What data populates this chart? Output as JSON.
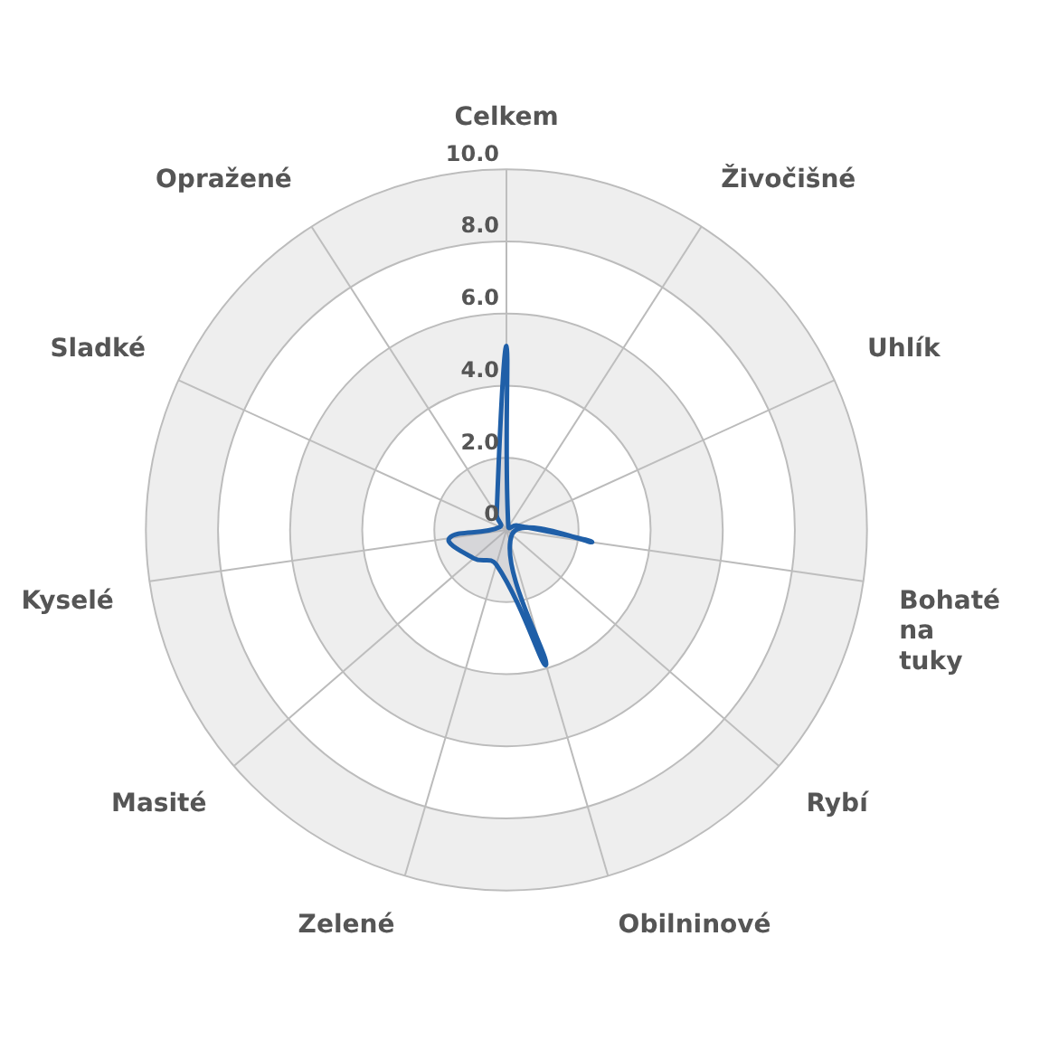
{
  "chart_data": {
    "type": "radar",
    "categories": [
      "Celkem",
      "Živočišné",
      "Uhlík",
      "Bohaté na tuky",
      "Rybí",
      "Obilninové",
      "Zelené",
      "Masité",
      "Kyselé",
      "Sladké",
      "Opražené"
    ],
    "series": [
      {
        "color": "#1f5fa8",
        "values": [
          5.1,
          0.1,
          0.3,
          2.4,
          0.2,
          3.9,
          1.0,
          1.2,
          1.6,
          0.2,
          0.5
        ]
      }
    ],
    "ylim": [
      0,
      10
    ],
    "yticks": [
      0,
      {
        "value": 2,
        "label": "2.0"
      },
      {
        "value": 4,
        "label": "4.0"
      },
      {
        "value": 6,
        "label": "6.0"
      },
      {
        "value": 8,
        "label": "8.0"
      },
      {
        "value": 10,
        "label": "10.0"
      }
    ],
    "grid": true,
    "legend": false,
    "marker": "none"
  }
}
